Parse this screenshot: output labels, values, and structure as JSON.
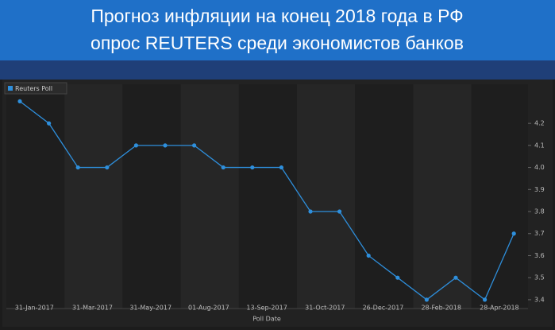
{
  "chart_data": {
    "type": "line",
    "title": "Прогноз инфляции на конец 2018 года в РФ",
    "subtitle": "опрос REUTERS среди экономистов банков",
    "x_label": "Poll Date",
    "categories": [
      "31-Jan-2017",
      null,
      "31-Mar-2017",
      null,
      "31-May-2017",
      null,
      "01-Aug-2017",
      null,
      "13-Sep-2017",
      null,
      "31-Oct-2017",
      null,
      "26-Dec-2017",
      null,
      "28-Feb-2018",
      null,
      "28-Apr-2018",
      null
    ],
    "series": [
      {
        "name": "Reuters Poll",
        "color": "#2e8fdc",
        "values": [
          4.3,
          4.2,
          4.0,
          4.0,
          4.1,
          4.1,
          4.1,
          4.0,
          4.0,
          4.0,
          3.8,
          3.8,
          3.6,
          3.5,
          3.4,
          3.5,
          3.4,
          3.7
        ]
      }
    ],
    "ylim": [
      3.36,
      4.37
    ],
    "yticks": [
      3.4,
      3.5,
      3.6,
      3.7,
      3.8,
      3.9,
      {
        "value": 4,
        "label": "4.0"
      },
      4.1,
      4.2
    ],
    "grid": false
  }
}
